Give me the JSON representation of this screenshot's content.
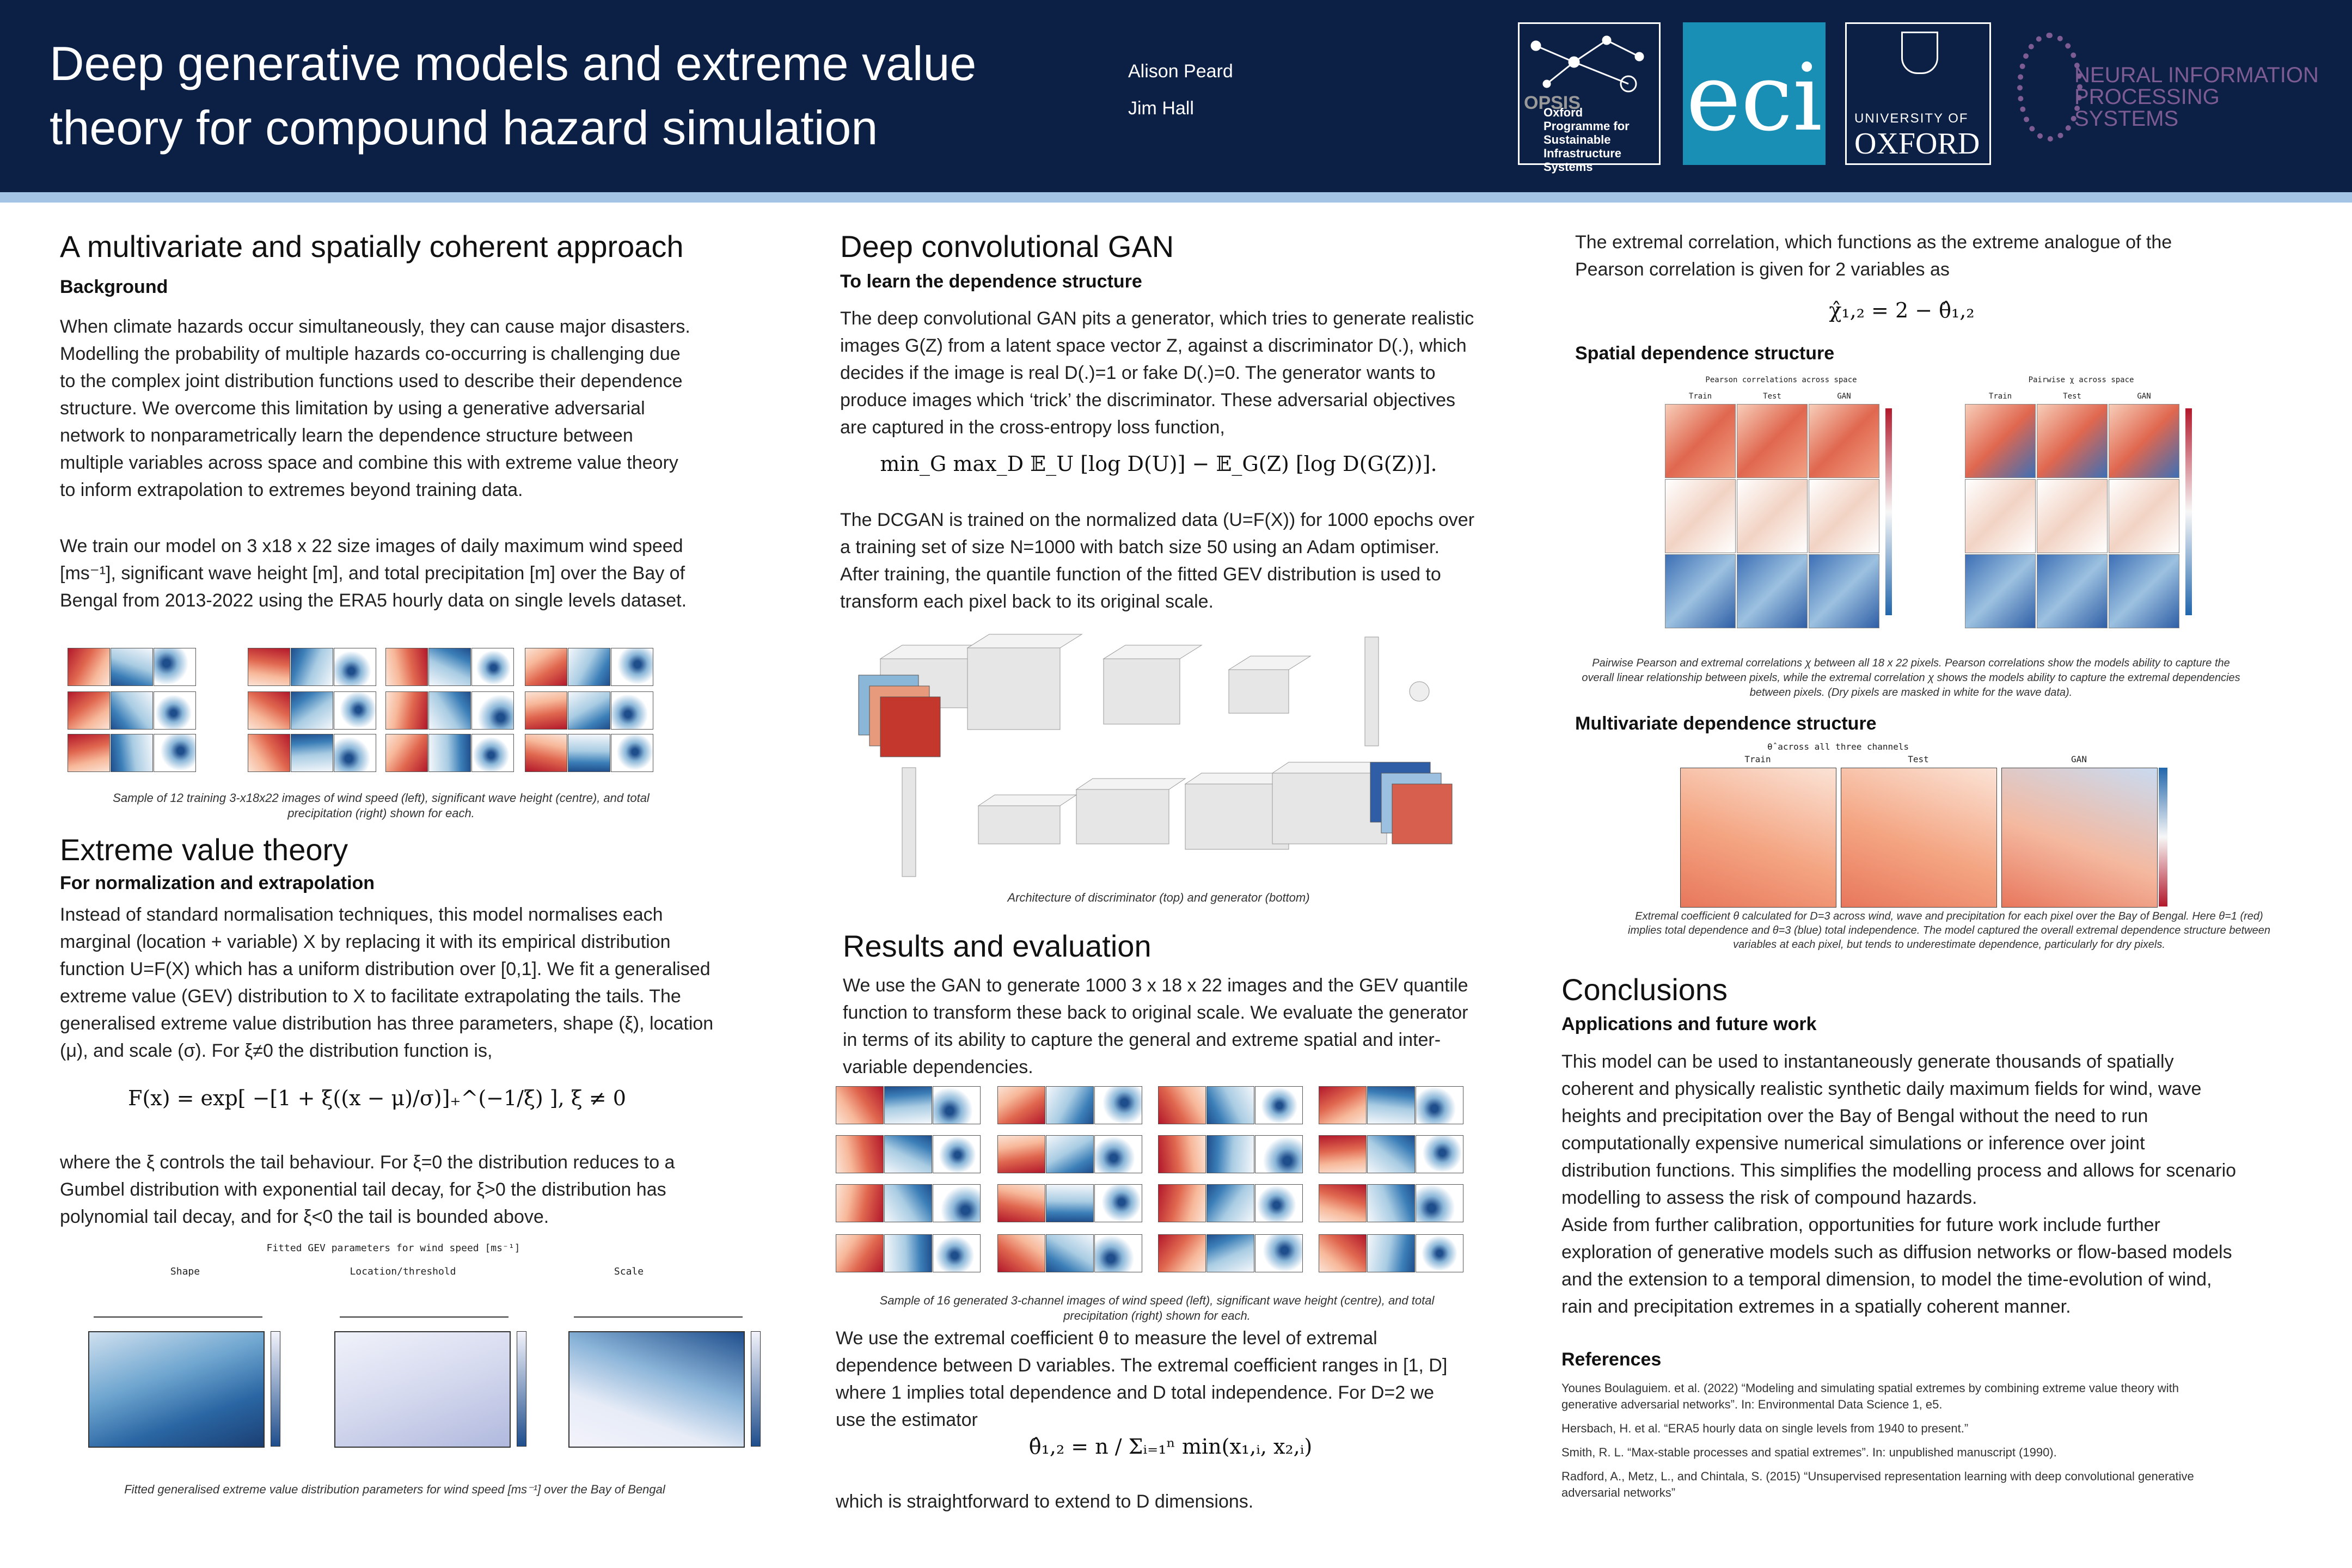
{
  "header": {
    "title": "Deep generative models and extreme value theory for compound hazard simulation",
    "authors": [
      "Alison Peard",
      "Jim Hall"
    ],
    "logos": {
      "opsis": "OPSIS",
      "opsis_text": "Oxford Programme for Sustainable Infrastructure Systems",
      "eci": "eci",
      "oxford_top": "UNIVERSITY OF",
      "oxford": "OXFORD",
      "neurips": "NEURAL INFORMATION PROCESSING SYSTEMS"
    }
  },
  "col1": {
    "approach": {
      "heading": "A multivariate and spatially coherent approach",
      "subheading": "Background",
      "paragraphs": [
        "When climate hazards occur simultaneously, they can cause major disasters. Modelling the probability of multiple hazards co-occurring is challenging due to the complex joint distribution functions used to describe their dependence structure. We overcome this limitation by using a generative adversarial network to nonparametrically learn the dependence structure between multiple variables across space and combine this with extreme value theory to inform extrapolation to extremes beyond training data.",
        "We train our model on 3 x18 x 22 size images of daily maximum wind speed [ms⁻¹], significant wave height [m], and total precipitation [m] over the Bay of Bengal from 2013-2022 using the ERA5 hourly data on single levels dataset."
      ],
      "caption": "Sample of 12 training 3-x18x22 images of wind speed (left), significant wave height (centre), and total precipitation (right) shown for each."
    },
    "evt": {
      "heading": "Extreme value theory",
      "subheading": "For normalization and extrapolation",
      "paragraph": "Instead of standard normalisation techniques, this model normalises each marginal (location + variable) X by replacing it with its empirical distribution function U=F(X) which has a uniform distribution over [0,1]. We fit a generalised extreme value (GEV) distribution to X to facilitate extrapolating the tails. The generalised extreme value distribution has three parameters, shape (ξ), location (μ), and scale (σ). For ξ≠0 the distribution function is,",
      "equation": "F(x) = exp[ −[1 + ξ((x − μ)/σ)]₊^(−1/ξ) ],      ξ ≠ 0",
      "paragraph2": "where the ξ controls the tail behaviour. For ξ=0 the distribution reduces to a Gumbel distribution with exponential tail decay, for ξ>0 the distribution has polynomial tail decay, and for ξ<0 the tail is bounded above.",
      "figure_title": "Fitted GEV parameters for wind speed [ms⁻¹]",
      "panels": [
        "Shape",
        "Location/threshold",
        "Scale"
      ],
      "caption": "Fitted generalised extreme value distribution parameters for wind speed [ms⁻¹] over the Bay of Bengal"
    }
  },
  "col2": {
    "gan": {
      "heading": "Deep convolutional GAN",
      "subheading": "To learn the dependence structure",
      "paragraph": "The deep convolutional GAN pits a generator, which tries to generate realistic images G(Z) from a latent space vector Z, against a discriminator D(.), which decides if the image is real D(.)=1 or fake D(.)=0. The generator wants to produce images which ‘trick’ the discriminator. These adversarial objectives are captured in the cross-entropy loss function,",
      "equation": "min_G max_D 𝔼_U [log D(U)] − 𝔼_G(Z) [log D(G(Z))].",
      "paragraph2": "The DCGAN is trained on the normalized data (U=F(X)) for 1000 epochs over a training set of size N=1000 with batch size 50 using an Adam optimiser. After training, the quantile function of the fitted GEV distribution is used to transform each pixel back to its original scale.",
      "caption": "Architecture of discriminator (top) and generator (bottom)"
    },
    "results": {
      "heading": "Results and evaluation",
      "paragraph": "We use the GAN to generate 1000 3 x 18 x 22 images and the GEV quantile function to transform these back to original scale. We evaluate the generator in terms of its ability to capture the general and extreme spatial and inter-variable dependencies.",
      "caption": "Sample of 16 generated 3-channel images of wind speed (left), significant wave height (centre), and total precipitation (right) shown for each.",
      "paragraph2": "We use the extremal coefficient θ to measure the level of extremal dependence between D variables. The extremal coefficient ranges in [1, D] where 1 implies total dependence and D total independence. For D=2 we use the estimator",
      "equation": "θ̂₁,₂ = n / Σᵢ₌₁ⁿ min(x₁,ᵢ, x₂,ᵢ)",
      "paragraph3": "which is straightforward to extend to D dimensions."
    }
  },
  "col3": {
    "intro": "The extremal correlation, which functions as the extreme analogue of the Pearson correlation is given for 2 variables as",
    "equation": "χ̂₁,₂ = 2 − θ̂₁,₂",
    "spatial": {
      "heading": "Spatial dependence structure",
      "titles": [
        "Pearson correlations across space",
        "Pairwise χ across space"
      ],
      "labels": [
        "Train",
        "Test",
        "GAN"
      ],
      "caption": "Pairwise Pearson and extremal correlations χ between all 18 x 22 pixels. Pearson correlations show the models ability to capture the overall linear relationship between pixels, while the extremal correlation χ shows the models ability to capture the extremal dependencies between pixels. (Dry pixels are masked in white for the wave data)."
    },
    "multi": {
      "heading": "Multivariate dependence structure",
      "title": "θ̂ across all three channels",
      "labels": [
        "Train",
        "Test",
        "GAN"
      ],
      "caption": "Extremal coefficient θ calculated for D=3 across wind, wave and precipitation for each pixel over the Bay of Bengal. Here θ=1 (red) implies total dependence and θ=3 (blue) total independence. The model captured the overall extremal dependence structure between variables at each pixel, but tends to underestimate dependence, particularly for dry pixels."
    },
    "conclusions": {
      "heading": "Conclusions",
      "subheading": "Applications and future work",
      "paragraphs": [
        "This model can be used to instantaneously generate thousands of spatially coherent and physically realistic synthetic daily maximum fields for wind, wave heights and precipitation over the Bay of Bengal without the need to run computationally expensive numerical simulations or inference over joint distribution functions. This simplifies the modelling process and allows for scenario modelling to assess the risk of compound hazards.",
        "Aside from further calibration, opportunities for future work include further exploration of generative models such as diffusion networks or flow-based models and the extension to a temporal dimension, to model the time-evolution of wind, rain and precipitation extremes in a spatially coherent manner."
      ]
    },
    "references": {
      "heading": "References",
      "items": [
        "Younes Boulaguiem. et al. (2022) “Modeling and simulating spatial extremes by combining extreme value theory with generative adversarial networks”. In: Environmental Data Science 1, e5.",
        "Hersbach, H. et al. “ERA5 hourly data on single levels from 1940 to present.”",
        "Smith, R. L. “Max-stable processes and spatial extremes”. In: unpublished manuscript (1990).",
        "Radford, A., Metz, L., and Chintala, S. (2015) “Unsupervised representation learning with deep convolutional generative adversarial networks”"
      ]
    }
  }
}
